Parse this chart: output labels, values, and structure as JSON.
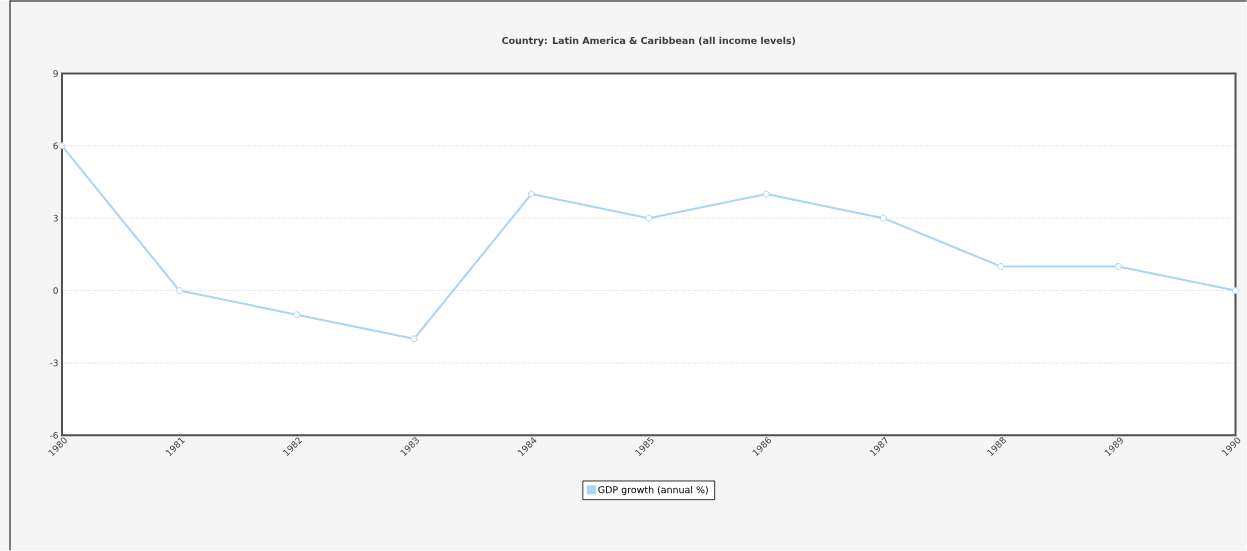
{
  "chart_data": {
    "type": "line",
    "title": "Country: Latin America & Caribbean (all income levels)",
    "x": [
      1980,
      1981,
      1982,
      1983,
      1984,
      1985,
      1986,
      1987,
      1988,
      1989,
      1990
    ],
    "series": [
      {
        "name": "GDP growth (annual %)",
        "color": "#aad4f5",
        "values": [
          6,
          0,
          -1,
          -2,
          4,
          3,
          4,
          3,
          1,
          1,
          0
        ]
      }
    ],
    "xlim": [
      1980,
      1990
    ],
    "ylim": [
      -6,
      9
    ],
    "xticks": [
      1980,
      1981,
      1982,
      1983,
      1984,
      1985,
      1986,
      1987,
      1988,
      1989,
      1990
    ],
    "yticks": [
      -6,
      -3,
      0,
      3,
      6,
      9
    ],
    "grid": "y",
    "legend": "bottom",
    "marker": "circle",
    "line_style": "solid"
  }
}
